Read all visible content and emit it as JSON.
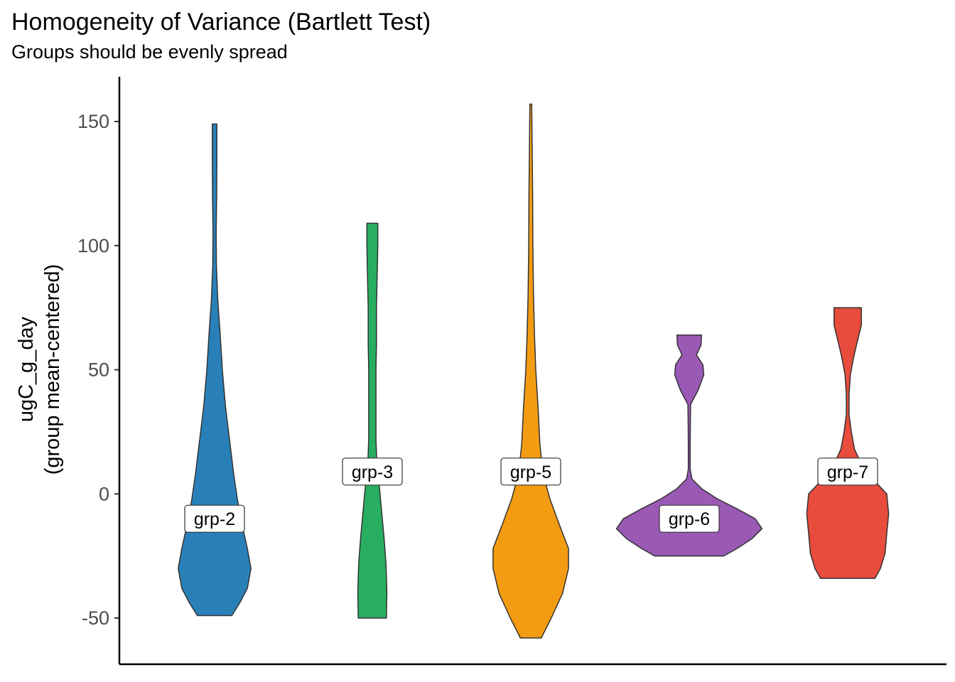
{
  "chart_data": {
    "type": "violin",
    "title": "Homogeneity of Variance (Bartlett Test)",
    "subtitle": "Groups should be evenly spread",
    "ylabel_line1": "ugC_g_day",
    "ylabel_line2": "(group mean-centered)",
    "xlabel": "",
    "ylim": [
      -68,
      168
    ],
    "yticks": [
      -50,
      0,
      50,
      100,
      150
    ],
    "grid": false,
    "legend": "none",
    "groups": [
      {
        "label": "grp-2",
        "color": "#2980b9",
        "min": -49,
        "max": 149,
        "label_y": -10,
        "profile": [
          [
            -49,
            0.38
          ],
          [
            -44,
            0.55
          ],
          [
            -38,
            0.72
          ],
          [
            -30,
            0.8
          ],
          [
            -22,
            0.72
          ],
          [
            -12,
            0.6
          ],
          [
            -2,
            0.5
          ],
          [
            8,
            0.42
          ],
          [
            20,
            0.34
          ],
          [
            35,
            0.24
          ],
          [
            50,
            0.17
          ],
          [
            65,
            0.12
          ],
          [
            78,
            0.07
          ],
          [
            92,
            0.04
          ],
          [
            105,
            0.035
          ],
          [
            120,
            0.045
          ],
          [
            135,
            0.05
          ],
          [
            149,
            0.05
          ]
        ]
      },
      {
        "label": "grp-3",
        "color": "#27ae60",
        "min": -50,
        "max": 109,
        "label_y": 9,
        "profile": [
          [
            -50,
            0.31
          ],
          [
            -40,
            0.32
          ],
          [
            -28,
            0.3
          ],
          [
            -18,
            0.26
          ],
          [
            -8,
            0.21
          ],
          [
            2,
            0.16
          ],
          [
            12,
            0.1
          ],
          [
            22,
            0.08
          ],
          [
            35,
            0.08
          ],
          [
            50,
            0.08
          ],
          [
            60,
            0.09
          ],
          [
            75,
            0.09
          ],
          [
            90,
            0.11
          ],
          [
            100,
            0.12
          ],
          [
            109,
            0.12
          ]
        ]
      },
      {
        "label": "grp-5",
        "color": "#f39c12",
        "min": -58,
        "max": 157,
        "label_y": 9,
        "profile": [
          [
            -58,
            0.23
          ],
          [
            -50,
            0.45
          ],
          [
            -40,
            0.7
          ],
          [
            -30,
            0.83
          ],
          [
            -22,
            0.83
          ],
          [
            -12,
            0.62
          ],
          [
            -2,
            0.42
          ],
          [
            8,
            0.27
          ],
          [
            20,
            0.2
          ],
          [
            35,
            0.16
          ],
          [
            50,
            0.11
          ],
          [
            65,
            0.08
          ],
          [
            80,
            0.06
          ],
          [
            100,
            0.045
          ],
          [
            120,
            0.04
          ],
          [
            140,
            0.03
          ],
          [
            157,
            0.02
          ]
        ]
      },
      {
        "label": "grp-6",
        "color": "#9b59b6",
        "min": -25,
        "max": 64,
        "label_y": -10,
        "profile": [
          [
            -25,
            0.76
          ],
          [
            -22,
            1.05
          ],
          [
            -18,
            1.38
          ],
          [
            -14,
            1.6
          ],
          [
            -10,
            1.45
          ],
          [
            -6,
            1.05
          ],
          [
            -2,
            0.62
          ],
          [
            2,
            0.28
          ],
          [
            6,
            0.06
          ],
          [
            10,
            0.02
          ],
          [
            20,
            0.02
          ],
          [
            30,
            0.025
          ],
          [
            36,
            0.03
          ],
          [
            42,
            0.2
          ],
          [
            48,
            0.32
          ],
          [
            52,
            0.3
          ],
          [
            56,
            0.16
          ],
          [
            60,
            0.26
          ],
          [
            64,
            0.27
          ]
        ]
      },
      {
        "label": "grp-7",
        "color": "#e74c3c",
        "min": -34,
        "max": 75,
        "label_y": 9,
        "profile": [
          [
            -34,
            0.6
          ],
          [
            -30,
            0.72
          ],
          [
            -24,
            0.82
          ],
          [
            -16,
            0.86
          ],
          [
            -8,
            0.9
          ],
          [
            0,
            0.86
          ],
          [
            6,
            0.55
          ],
          [
            12,
            0.3
          ],
          [
            18,
            0.15
          ],
          [
            25,
            0.08
          ],
          [
            32,
            0.03
          ],
          [
            40,
            0.03
          ],
          [
            48,
            0.06
          ],
          [
            55,
            0.13
          ],
          [
            62,
            0.22
          ],
          [
            68,
            0.3
          ],
          [
            75,
            0.3
          ]
        ]
      }
    ]
  }
}
